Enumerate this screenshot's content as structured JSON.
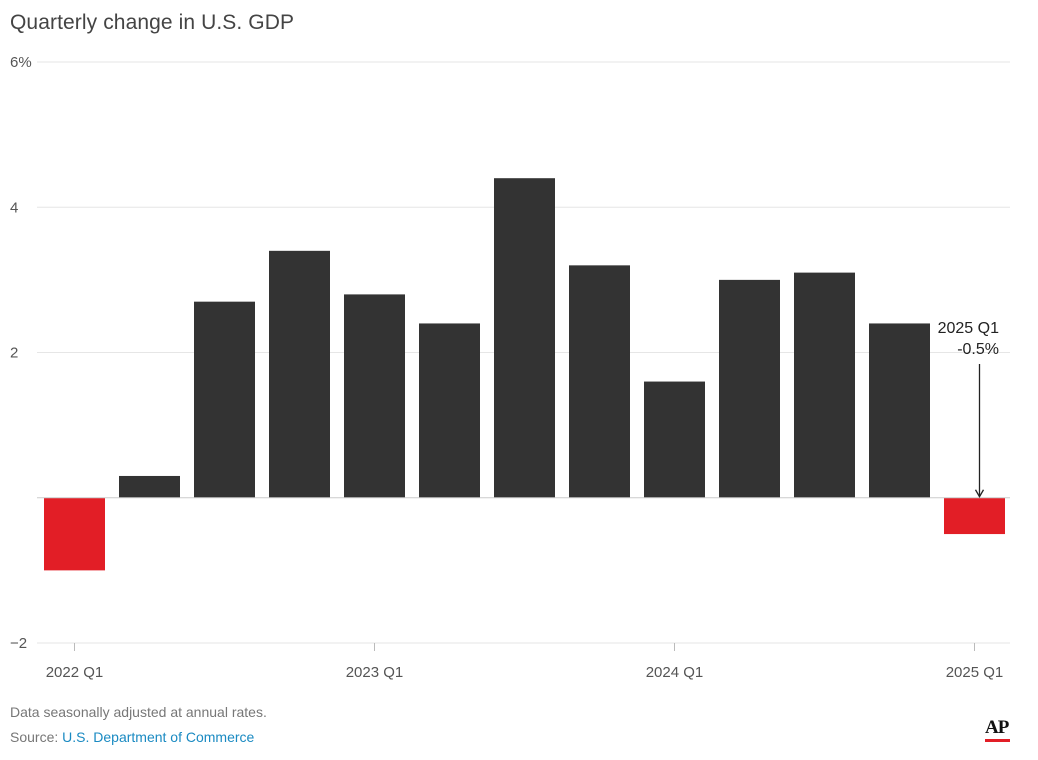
{
  "title": "Quarterly change in U.S. GDP",
  "note": "Data seasonally adjusted at annual rates.",
  "source_prefix": "Source: ",
  "source_link": "U.S. Department of Commerce",
  "logo_text": "AP",
  "colors": {
    "bar": "#333333",
    "negative": "#e21e26",
    "grid": "#e6e6e6",
    "tick_text": "#555555",
    "link": "#1a8ac2",
    "logo_accent": "#e21e26"
  },
  "chart_data": {
    "type": "bar",
    "categories": [
      "2022 Q1",
      "2022 Q2",
      "2022 Q3",
      "2022 Q4",
      "2023 Q1",
      "2023 Q2",
      "2023 Q3",
      "2023 Q4",
      "2024 Q1",
      "2024 Q2",
      "2024 Q3",
      "2024 Q4",
      "2025 Q1"
    ],
    "values": [
      -1.0,
      0.3,
      2.7,
      3.4,
      2.8,
      2.4,
      4.4,
      3.2,
      1.6,
      3.0,
      3.1,
      2.4,
      -0.5
    ],
    "ylim": [
      -2,
      6
    ],
    "yticks": [
      {
        "value": 6,
        "label": "6%"
      },
      {
        "value": 4,
        "label": "4"
      },
      {
        "value": 2,
        "label": "2"
      },
      {
        "value": -2,
        "label": "−2"
      }
    ],
    "xtick_labels": [
      {
        "category": "2022 Q1",
        "label": "2022 Q1"
      },
      {
        "category": "2023 Q1",
        "label": "2023 Q1"
      },
      {
        "category": "2024 Q1",
        "label": "2024 Q1"
      },
      {
        "category": "2025 Q1",
        "label": "2025 Q1"
      }
    ],
    "annotation": {
      "category": "2025 Q1",
      "line1": "2025 Q1",
      "line2": "-0.5%"
    },
    "grid": true,
    "legend": "none"
  }
}
